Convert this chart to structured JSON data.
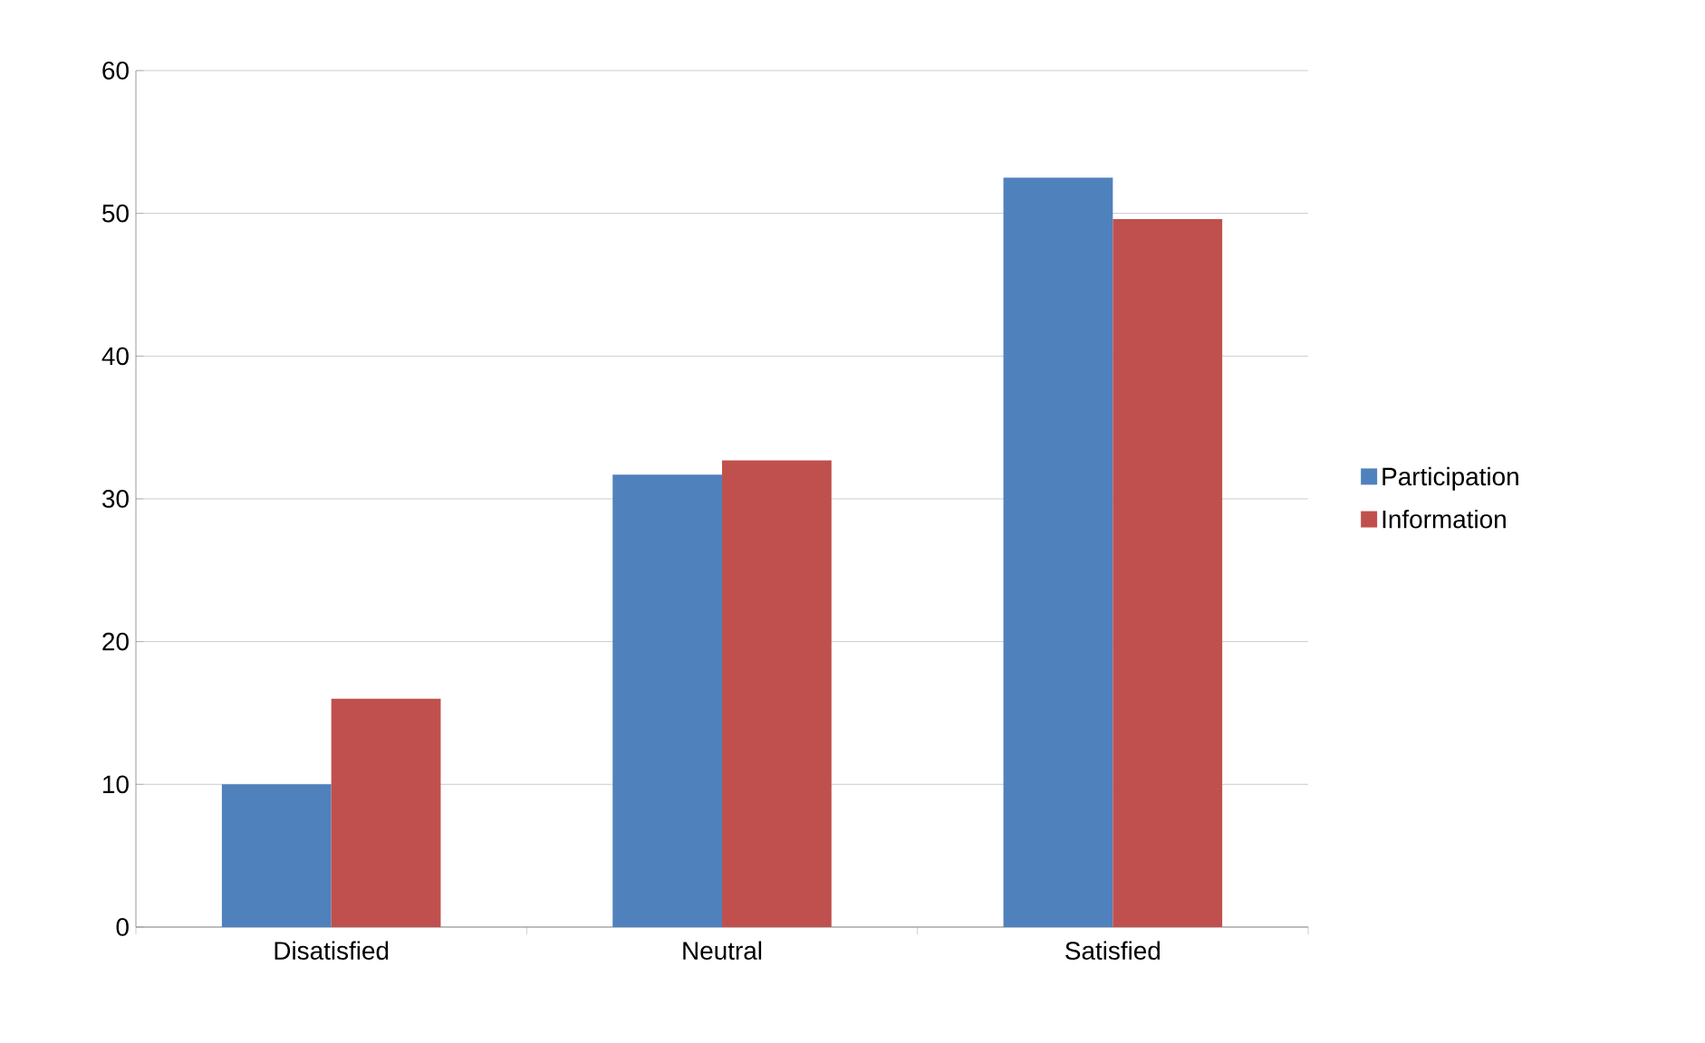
{
  "chart_data": {
    "type": "bar",
    "categories": [
      "Disatisfied",
      "Neutral",
      "Satisfied"
    ],
    "series": [
      {
        "name": "Participation",
        "color": "#4f81bd",
        "values": [
          10,
          31.7,
          52.5
        ]
      },
      {
        "name": "Information",
        "color": "#c0504d",
        "values": [
          16,
          32.7,
          49.6
        ]
      }
    ],
    "ylim": [
      0,
      60
    ],
    "yticks": [
      0,
      10,
      20,
      30,
      40,
      50,
      60
    ],
    "grid": "y",
    "legend": "right"
  }
}
